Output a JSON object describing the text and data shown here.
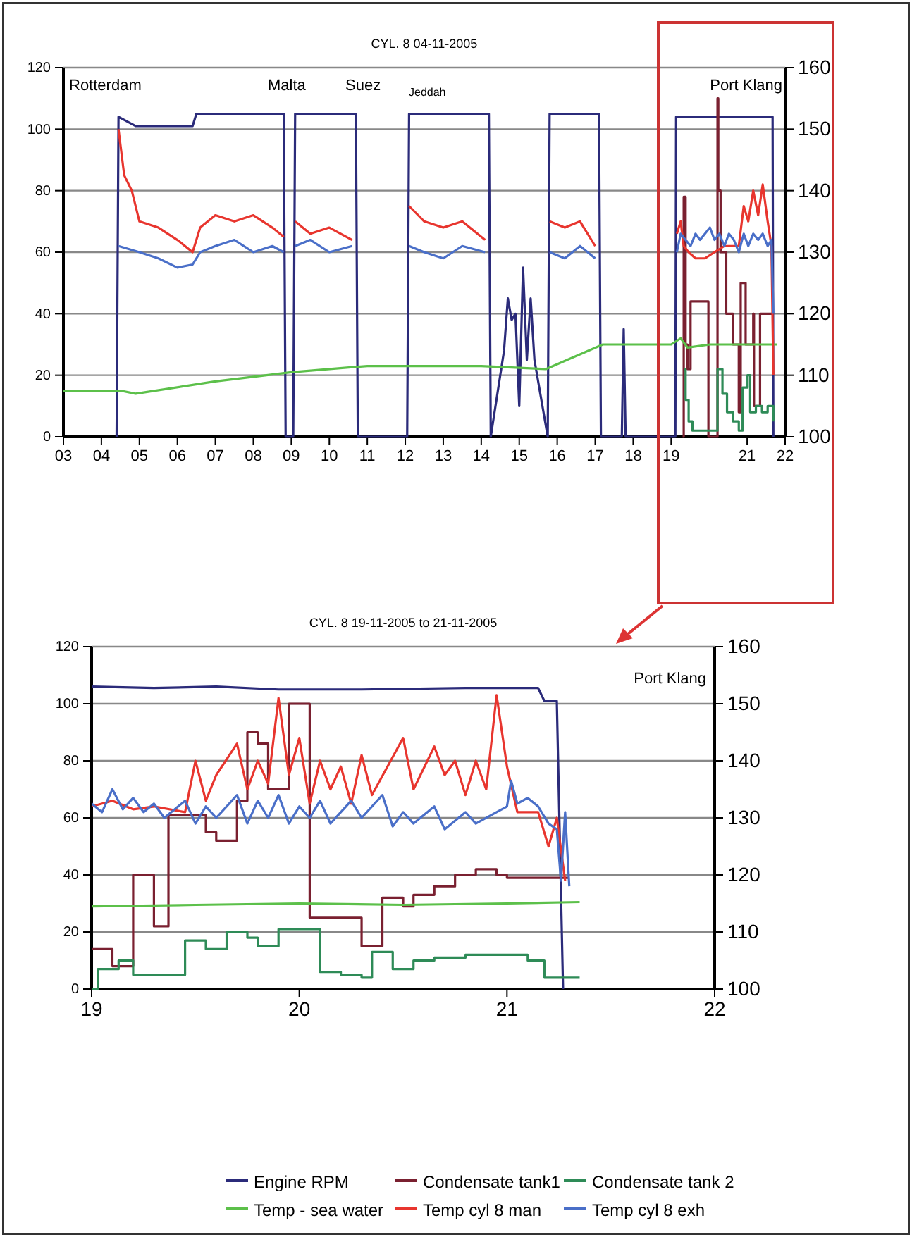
{
  "chart_data": [
    {
      "type": "line",
      "title": "CYL. 8 04-11-2005",
      "xlim": [
        3,
        22
      ],
      "xticks": [
        {
          "value": 3,
          "label": "03"
        },
        {
          "value": 4,
          "label": "04"
        },
        {
          "value": 5,
          "label": "05"
        },
        {
          "value": 6,
          "label": "06"
        },
        {
          "value": 7,
          "label": "07"
        },
        {
          "value": 8,
          "label": "08"
        },
        {
          "value": 9,
          "label": "09"
        },
        10,
        11,
        12,
        13,
        14,
        15,
        16,
        17,
        18,
        19,
        21,
        22
      ],
      "ylim": [
        0,
        120
      ],
      "yticks": [
        0,
        20,
        40,
        60,
        80,
        100,
        120
      ],
      "y2lim": [
        100,
        160
      ],
      "y2ticks": [
        100,
        110,
        120,
        130,
        140,
        150,
        160
      ],
      "grid": "y",
      "legend": false,
      "annotations": [
        "Rotterdam",
        "Malta",
        "Suez",
        "Jeddah",
        "Port Klang"
      ],
      "series": [
        {
          "color": "#2b2b7a",
          "x": [
            4.4,
            4.45,
            4.9,
            6.4,
            6.5,
            8.8,
            8.85,
            9.05,
            9.1,
            10.7,
            10.75,
            12.05,
            12.1,
            14.2,
            14.25,
            14.6,
            14.7,
            14.8,
            14.9,
            15.0,
            15.1,
            15.2,
            15.3,
            15.4,
            15.75,
            15.8,
            17.1,
            17.15,
            17.7,
            17.75,
            17.8,
            19.11,
            19.13,
            21.67,
            21.69
          ],
          "values": [
            0,
            104,
            101,
            101,
            105,
            105,
            0,
            0,
            105,
            105,
            0,
            0,
            105,
            105,
            0,
            28,
            45,
            38,
            40,
            10,
            55,
            25,
            45,
            25,
            0,
            105,
            105,
            0,
            0,
            35,
            0,
            0,
            104,
            104,
            0
          ]
        },
        {
          "color": "#7a2030",
          "type": "step",
          "x": [
            19.3,
            19.33,
            19.38,
            19.43,
            19.51,
            19.97,
            19.98,
            20.19,
            20.22,
            20.24,
            20.3,
            20.45,
            20.63,
            20.78,
            20.83,
            20.96,
            21.16,
            21.18,
            21.34,
            21.51,
            21.69
          ],
          "values": [
            0,
            78,
            30,
            22,
            44,
            44,
            0,
            0,
            110,
            80,
            60,
            40,
            30,
            8,
            50,
            30,
            40,
            10,
            40,
            40,
            40
          ]
        },
        {
          "color": "#2e8b57",
          "type": "step",
          "x": [
            19.33,
            19.38,
            19.46,
            19.56,
            20.14,
            20.22,
            20.35,
            20.47,
            20.63,
            20.78,
            20.88,
            21.01,
            21.08,
            21.23,
            21.39,
            21.54,
            21.69
          ],
          "values": [
            22,
            12,
            5,
            2,
            2,
            22,
            14,
            8,
            5,
            2,
            16,
            20,
            8,
            10,
            8,
            10,
            5
          ]
        },
        {
          "color": "#5cc04a",
          "x": [
            3,
            4.5,
            4.9,
            7,
            9,
            11,
            14,
            15.7,
            17.2,
            19,
            19.25,
            19.43,
            20.02,
            20.78,
            21.79
          ],
          "values": [
            15,
            15,
            14,
            18,
            21,
            23,
            23,
            22,
            30,
            30,
            32,
            29,
            30,
            30,
            30
          ]
        },
        {
          "color": "#e8352e",
          "x": [
            4.45,
            4.6,
            4.8,
            5.0,
            5.5,
            6.0,
            6.4,
            6.6,
            7.0,
            7.5,
            8.0,
            8.5,
            8.8,
            8.85,
            9.1,
            9.5,
            10.0,
            10.6,
            10.7,
            12.1,
            12.5,
            13.0,
            13.5,
            14.1,
            14.2,
            15.8,
            16.2,
            16.6,
            17.0,
            17.1,
            19.15,
            19.25,
            19.33,
            19.46,
            19.64,
            19.89,
            20.14,
            20.4,
            20.65,
            20.78,
            20.91,
            21.03,
            21.16,
            21.29,
            21.41,
            21.54,
            21.64,
            21.69
          ],
          "values": [
            100,
            85,
            80,
            70,
            68,
            64,
            60,
            68,
            72,
            70,
            72,
            68,
            65,
            null,
            70,
            66,
            68,
            64,
            null,
            75,
            70,
            68,
            70,
            64,
            null,
            70,
            68,
            70,
            62,
            null,
            66,
            70,
            62,
            60,
            58,
            58,
            60,
            62,
            62,
            62,
            75,
            70,
            80,
            72,
            82,
            70,
            62,
            20
          ]
        },
        {
          "color": "#4a6fc8",
          "x": [
            4.45,
            5.0,
            5.5,
            6.0,
            6.4,
            6.6,
            7.0,
            7.5,
            8.0,
            8.5,
            8.8,
            8.85,
            9.1,
            9.5,
            10.0,
            10.6,
            10.7,
            12.1,
            12.5,
            13.0,
            13.5,
            14.1,
            14.2,
            15.8,
            16.2,
            16.6,
            17.0,
            17.1,
            19.15,
            19.25,
            19.38,
            19.51,
            19.64,
            19.76,
            19.89,
            20.02,
            20.14,
            20.27,
            20.4,
            20.52,
            20.65,
            20.78,
            20.91,
            21.03,
            21.16,
            21.29,
            21.41,
            21.54,
            21.64,
            21.69
          ],
          "values": [
            62,
            60,
            58,
            55,
            56,
            60,
            62,
            64,
            60,
            62,
            60,
            null,
            62,
            64,
            60,
            62,
            null,
            62,
            60,
            58,
            62,
            60,
            null,
            60,
            58,
            62,
            58,
            null,
            60,
            66,
            64,
            62,
            66,
            64,
            66,
            68,
            64,
            66,
            62,
            66,
            64,
            60,
            66,
            62,
            66,
            64,
            66,
            62,
            64,
            40
          ]
        }
      ]
    },
    {
      "type": "line",
      "title": "CYL. 8 19-11-2005 to 21-11-2005",
      "xlim": [
        19,
        22
      ],
      "xticks": [
        19,
        20,
        21,
        22
      ],
      "ylim": [
        0,
        120
      ],
      "yticks": [
        0,
        20,
        40,
        60,
        80,
        100,
        120
      ],
      "y2lim": [
        100,
        160
      ],
      "y2ticks": [
        100,
        110,
        120,
        130,
        140,
        150,
        160
      ],
      "grid": "y",
      "legend": "bottom",
      "annotations": [
        "Port Klang"
      ],
      "series": [
        {
          "name": "Engine RPM",
          "color": "#2b2b7a",
          "x": [
            19,
            19.3,
            19.6,
            19.9,
            20.3,
            20.8,
            21.15,
            21.18,
            21.24,
            21.27
          ],
          "values": [
            106,
            105.5,
            106,
            105,
            105,
            105.5,
            105.5,
            101,
            101,
            0
          ]
        },
        {
          "name": "Condensate tank1",
          "color": "#7a2030",
          "type": "step",
          "x": [
            19,
            19.1,
            19.2,
            19.3,
            19.37,
            19.55,
            19.6,
            19.7,
            19.75,
            19.8,
            19.85,
            19.95,
            20.05,
            20.3,
            20.4,
            20.5,
            20.55,
            20.65,
            20.75,
            20.85,
            20.95,
            21.0,
            21.3
          ],
          "values": [
            14,
            8,
            40,
            22,
            61,
            55,
            52,
            66,
            90,
            86,
            70,
            100,
            25,
            15,
            32,
            29,
            33,
            36,
            40,
            42,
            40,
            39,
            39
          ]
        },
        {
          "name": "Condensate tank 2",
          "color": "#2e8b57",
          "type": "step",
          "x": [
            19,
            19.03,
            19.13,
            19.2,
            19.35,
            19.45,
            19.55,
            19.65,
            19.75,
            19.8,
            19.9,
            20.0,
            20.1,
            20.2,
            20.3,
            20.35,
            20.45,
            20.55,
            20.65,
            20.8,
            20.95,
            21.1,
            21.18,
            21.35
          ],
          "values": [
            0,
            7,
            10,
            5,
            5,
            17,
            14,
            20,
            18,
            15,
            21,
            21,
            6,
            5,
            4,
            13,
            7,
            10,
            11,
            12,
            12,
            10,
            4,
            4
          ]
        },
        {
          "name": "Temp - sea water",
          "color": "#5cc04a",
          "x": [
            19,
            19.5,
            20,
            20.5,
            21,
            21.35
          ],
          "values": [
            29,
            29.5,
            30,
            29.5,
            30,
            30.5
          ]
        },
        {
          "name": "Temp cyl 8 man",
          "color": "#e8352e",
          "x": [
            19,
            19.1,
            19.2,
            19.3,
            19.45,
            19.5,
            19.55,
            19.6,
            19.7,
            19.75,
            19.8,
            19.85,
            19.9,
            19.95,
            20.0,
            20.05,
            20.1,
            20.15,
            20.2,
            20.25,
            20.3,
            20.35,
            20.5,
            20.55,
            20.65,
            20.7,
            20.75,
            20.8,
            20.85,
            20.9,
            20.95,
            21.0,
            21.05,
            21.1,
            21.15,
            21.2,
            21.24,
            21.28
          ],
          "values": [
            64,
            66,
            63,
            64,
            62,
            80,
            66,
            75,
            86,
            70,
            80,
            72,
            102,
            75,
            88,
            65,
            80,
            70,
            78,
            65,
            82,
            68,
            88,
            70,
            85,
            75,
            80,
            68,
            80,
            70,
            103,
            78,
            62,
            62,
            62,
            50,
            60,
            38
          ]
        },
        {
          "name": "Temp cyl 8 exh",
          "color": "#4a6fc8",
          "x": [
            19,
            19.05,
            19.1,
            19.15,
            19.2,
            19.25,
            19.3,
            19.35,
            19.45,
            19.5,
            19.55,
            19.6,
            19.7,
            19.75,
            19.8,
            19.85,
            19.9,
            19.95,
            20.0,
            20.05,
            20.1,
            20.15,
            20.25,
            20.3,
            20.4,
            20.45,
            20.5,
            20.55,
            20.65,
            20.7,
            20.8,
            20.85,
            20.95,
            21.0,
            21.02,
            21.05,
            21.1,
            21.15,
            21.2,
            21.24,
            21.26,
            21.28,
            21.3
          ],
          "values": [
            65,
            62,
            70,
            63,
            67,
            62,
            65,
            60,
            66,
            58,
            64,
            60,
            68,
            58,
            66,
            60,
            68,
            58,
            64,
            60,
            66,
            58,
            66,
            60,
            68,
            57,
            62,
            58,
            64,
            56,
            62,
            58,
            62,
            64,
            73,
            65,
            67,
            64,
            58,
            56,
            38,
            62,
            36
          ]
        }
      ]
    }
  ]
}
